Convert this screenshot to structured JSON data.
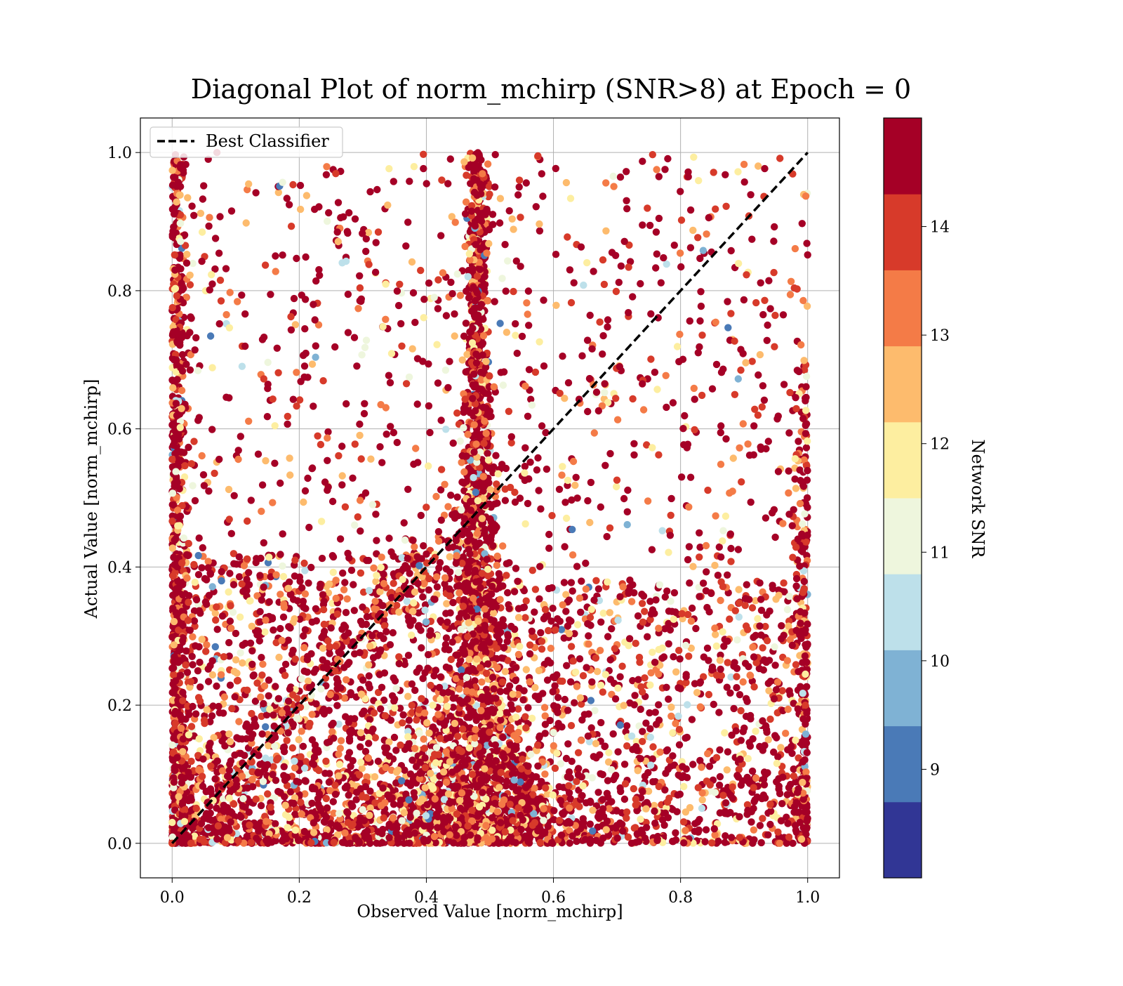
{
  "chart_data": {
    "type": "scatter",
    "title": "Diagonal Plot of norm_mchirp (SNR>8) at Epoch = 0",
    "xlabel": "Observed Value [norm_mchirp]",
    "ylabel": "Actual Value [norm_mchirp]",
    "xlim": [
      -0.05,
      1.05
    ],
    "ylim": [
      -0.05,
      1.05
    ],
    "x_ticks": [
      0.0,
      0.2,
      0.4,
      0.6,
      0.8,
      1.0
    ],
    "y_ticks": [
      0.0,
      0.2,
      0.4,
      0.6,
      0.8,
      1.0
    ],
    "x_tick_labels": [
      "0.0",
      "0.2",
      "0.4",
      "0.6",
      "0.8",
      "1.0"
    ],
    "y_tick_labels": [
      "0.0",
      "0.2",
      "0.4",
      "0.6",
      "0.8",
      "1.0"
    ],
    "grid": true,
    "legend": {
      "position": "top-left",
      "entries": [
        {
          "label": "Best Classifier",
          "style": "dashed",
          "color": "#000000"
        }
      ]
    },
    "reference_line": {
      "name": "Best Classifier",
      "x": [
        0.0,
        1.0
      ],
      "y": [
        0.0,
        1.0
      ]
    },
    "colorbar": {
      "label": "Network SNR",
      "range": [
        8,
        15
      ],
      "ticks": [
        9,
        10,
        11,
        12,
        13,
        14
      ],
      "tick_labels": [
        "9",
        "10",
        "11",
        "12",
        "13",
        "14"
      ],
      "colors": [
        "#313695",
        "#4575b4",
        "#74add1",
        "#abd9e9",
        "#e0f3f8",
        "#ffffbf",
        "#fee090",
        "#fdae61",
        "#f46d43",
        "#d73027",
        "#a50026"
      ]
    },
    "point_clusters": [
      {
        "region": "vertical band",
        "x_center": 0.48,
        "y_range": [
          0.0,
          1.0
        ],
        "density": "very high",
        "dominant_snr": "high (>14)"
      },
      {
        "region": "left edge",
        "x_center": 0.0,
        "y_range": [
          0.0,
          1.0
        ],
        "density": "high",
        "dominant_snr": "high (>14)"
      },
      {
        "region": "right edge",
        "x_center": 1.0,
        "y_range": [
          0.0,
          0.7
        ],
        "density": "medium",
        "dominant_snr": "high (>14)"
      },
      {
        "region": "bottom band",
        "x_range": [
          0.0,
          1.0
        ],
        "y_range": [
          0.0,
          0.35
        ],
        "density": "high",
        "dominant_snr": "high (>14)"
      },
      {
        "region": "sparse upper area",
        "x_range": [
          0.0,
          1.0
        ],
        "y_range": [
          0.35,
          1.0
        ],
        "density": "low",
        "dominant_snr": "mixed"
      }
    ]
  }
}
